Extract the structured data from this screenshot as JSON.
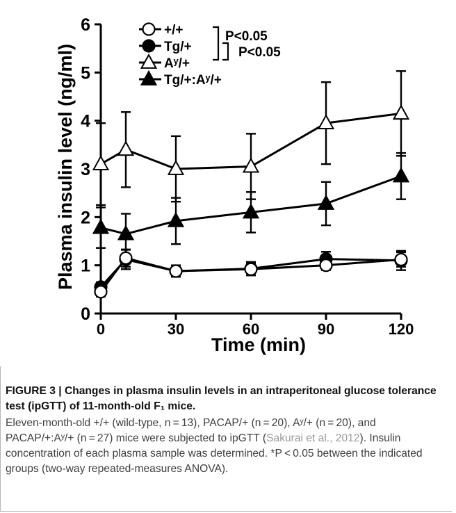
{
  "chart_data": {
    "type": "line",
    "xlabel": "Time (min)",
    "ylabel": "Plasma insulin level (ng/ml)",
    "x": [
      0,
      10,
      30,
      60,
      90,
      120
    ],
    "x_ticks": [
      0,
      30,
      60,
      90,
      120
    ],
    "xlim": [
      0,
      120
    ],
    "y_ticks": [
      0,
      1,
      2,
      3,
      4,
      5,
      6
    ],
    "ylim": [
      0,
      6
    ],
    "grid": false,
    "legend_position": "top-left",
    "series": [
      {
        "name": "+/+",
        "marker": "circle-open",
        "values": [
          0.45,
          1.15,
          0.88,
          0.92,
          1.0,
          1.12
        ],
        "errors": [
          0.1,
          0.18,
          0.12,
          0.12,
          0.1,
          0.15
        ]
      },
      {
        "name": "Tg/+",
        "marker": "circle-filled",
        "values": [
          0.55,
          1.12,
          0.88,
          0.93,
          1.13,
          1.1
        ],
        "errors": [
          0.1,
          0.2,
          0.12,
          0.14,
          0.15,
          0.2
        ]
      },
      {
        "name": "Aʸ/+",
        "marker": "triangle-open",
        "values": [
          3.1,
          3.4,
          3.0,
          3.05,
          3.95,
          4.15
        ],
        "errors": [
          0.85,
          0.78,
          0.68,
          0.68,
          0.85,
          0.88
        ]
      },
      {
        "name": "Tg/+:Aʸ/+",
        "marker": "triangle-filled",
        "values": [
          1.78,
          1.65,
          1.92,
          2.1,
          2.28,
          2.85
        ],
        "errors": [
          0.42,
          0.42,
          0.48,
          0.42,
          0.45,
          0.48
        ]
      }
    ],
    "annotations": [
      "P<0.05",
      "P<0.05"
    ]
  },
  "caption": {
    "title": "FIGURE 3 | Changes in plasma insulin levels in an intraperitoneal glucose tolerance test (ipGTT) of 11-month-old F₁ mice.",
    "body_1": "Eleven-month-old +/+ (wild-type, n = 13), PACAP/+ (n = 20), Aʸ/+ (n = 20), and PACAP/+:Aʸ/+ (n = 27) mice were subjected to ipGTT (",
    "citation": "Sakurai et al., 2012",
    "body_2": "). Insulin concentration of each plasma sample was determined. *P < 0.05 between the indicated groups (two-way repeated-measures ANOVA)."
  }
}
